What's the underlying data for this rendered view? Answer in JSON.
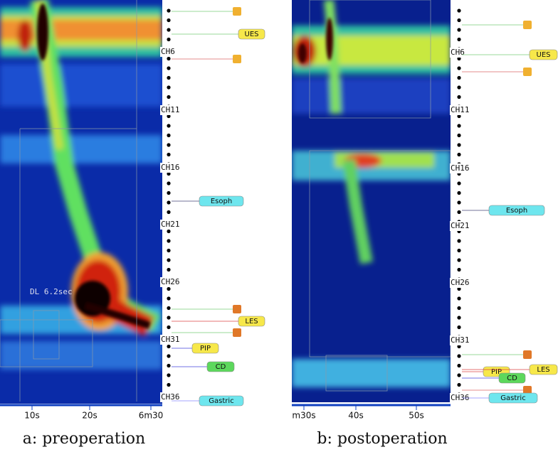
{
  "panels": [
    {
      "caption": "a: preoperation",
      "channels": [
        "CH6",
        "CH11",
        "CH16",
        "CH21",
        "CH26",
        "CH31",
        "CH36"
      ],
      "tags": [
        "UES",
        "Esoph",
        "LES",
        "PIP",
        "CD",
        "Gastric"
      ],
      "time_ticks": [
        "10s",
        "20s",
        "6m30"
      ],
      "annotation": "DL 6.2sec"
    },
    {
      "caption": "b: postoperation",
      "channels": [
        "CH6",
        "CH11",
        "CH16",
        "CH21",
        "CH26",
        "CH31",
        "CH36"
      ],
      "tags": [
        "UES",
        "Esoph",
        "PIP",
        "LES",
        "CD",
        "Gastric"
      ],
      "time_ticks": [
        "m30s",
        "40s",
        "50s"
      ]
    }
  ]
}
